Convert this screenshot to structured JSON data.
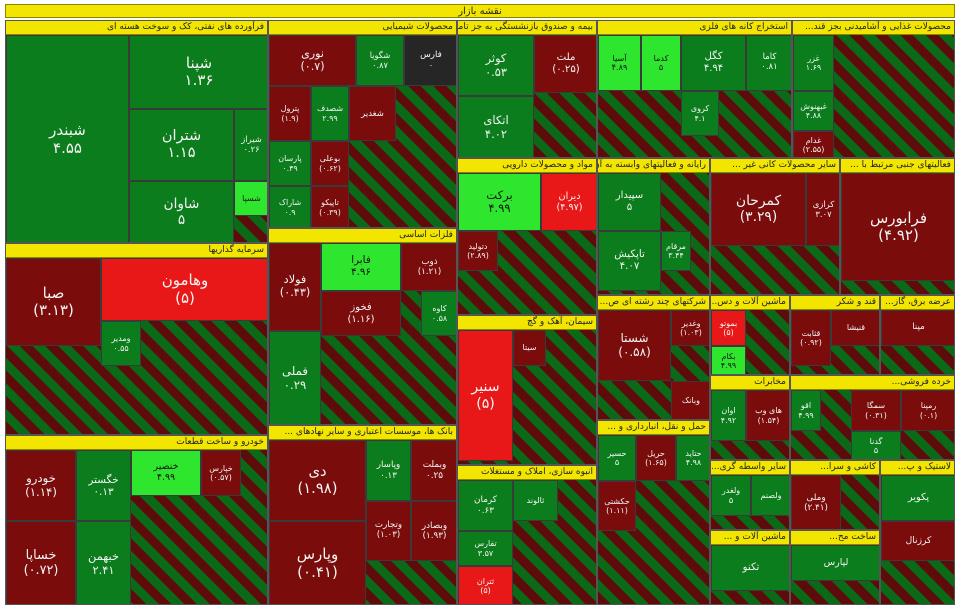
{
  "title": "نقشه بازار",
  "sectors": [
    {
      "name": "فرآورده های نفتی، کک و سوخت هسته ای",
      "tiles": [
        {
          "symbol": "شبندر",
          "change": "۴.۵۵",
          "color": "#0b7d1c"
        },
        {
          "symbol": "شپنا",
          "change": "۱.۳۶",
          "color": "#0b7d1c"
        },
        {
          "symbol": "شتران",
          "change": "۱.۱۵",
          "color": "#0b7d1c"
        },
        {
          "symbol": "شیراز",
          "change": "۰.۲۶",
          "color": "#0b7d1c"
        },
        {
          "symbol": "شاوان",
          "change": "۵",
          "color": "#0b7d1c"
        },
        {
          "symbol": "شسپا",
          "change": "",
          "color": "#2ee62e"
        }
      ]
    },
    {
      "name": "محصولات شیمیایی",
      "tiles": [
        {
          "symbol": "نوری",
          "change": "(۰.۷)",
          "color": "#7a0c0c"
        },
        {
          "symbol": "شگویا",
          "change": "۰.۸۷",
          "color": "#0b7d1c"
        },
        {
          "symbol": "فارس",
          "change": "۰",
          "color": "#262626"
        },
        {
          "symbol": "پترول",
          "change": "(۱.۹)",
          "color": "#7a0c0c"
        },
        {
          "symbol": "شصدف",
          "change": "۲.۹۹",
          "color": "#0b7d1c"
        },
        {
          "symbol": "شغدیر",
          "change": "",
          "color": "#7a0c0c"
        },
        {
          "symbol": "پارسان",
          "change": "۰.۴۹",
          "color": "#0b7d1c"
        },
        {
          "symbol": "بوعلی",
          "change": "(۰.۶۲)",
          "color": "#7a0c0c"
        },
        {
          "symbol": "شاراک",
          "change": "۰.۹",
          "color": "#0b7d1c"
        },
        {
          "symbol": "تاپیکو",
          "change": "(۰.۳۹)",
          "color": "#7a0c0c"
        }
      ]
    },
    {
      "name": "بیمه و صندوق بازنشستگی به جز تامین ...",
      "tiles": [
        {
          "symbol": "کوثر",
          "change": "۰.۵۳",
          "color": "#0b7d1c"
        },
        {
          "symbol": "ملت",
          "change": "(۰.۲۵)",
          "color": "#7a0c0c"
        },
        {
          "symbol": "اتکای",
          "change": "۴.۰۲",
          "color": "#0b7d1c"
        }
      ]
    },
    {
      "name": "استخراج کانه های فلزی",
      "tiles": [
        {
          "symbol": "آسیا",
          "change": "۴.۸۹",
          "color": "#2ee62e"
        },
        {
          "symbol": "کدما",
          "change": "۵",
          "color": "#2ee62e"
        },
        {
          "symbol": "کگل",
          "change": "۴.۹۴",
          "color": "#0b7d1c"
        },
        {
          "symbol": "کاما",
          "change": "۰.۸۱",
          "color": "#0b7d1c"
        },
        {
          "symbol": "کروی",
          "change": "۴.۱",
          "color": "#0b7d1c"
        }
      ]
    },
    {
      "name": "محصولات غذایی و آشامیدنی بجز قند...",
      "tiles": [
        {
          "symbol": "غزر",
          "change": "۱.۶۹",
          "color": "#0b7d1c"
        },
        {
          "symbol": "غبهنوش",
          "change": "۴.۸۸",
          "color": "#0b7d1c"
        },
        {
          "symbol": "غدام",
          "change": "(۲.۵۵)",
          "color": "#7a0c0c"
        }
      ]
    },
    {
      "name": "فعالیتهای جنبی مرتبط با ...",
      "tiles": [
        {
          "symbol": "فرابورس",
          "change": "(۴.۹۲)",
          "color": "#7a0c0c"
        }
      ]
    },
    {
      "name": "مواد و محصولات دارویی",
      "tiles": [
        {
          "symbol": "برکت",
          "change": "۴.۹۹",
          "color": "#2ee62e"
        },
        {
          "symbol": "دیران",
          "change": "(۴.۹۷)",
          "color": "#e81818"
        },
        {
          "symbol": "دتولید",
          "change": "(۲.۸۹)",
          "color": "#7a0c0c"
        }
      ]
    },
    {
      "name": "رایانه و فعالیتهای وابسته به آن",
      "tiles": [
        {
          "symbol": "سپیدار",
          "change": "۵",
          "color": "#0b7d1c"
        },
        {
          "symbol": "تاپکیش",
          "change": "۴.۰۷",
          "color": "#0b7d1c"
        },
        {
          "symbol": "مرقام",
          "change": "۳.۴۴",
          "color": "#0b7d1c"
        }
      ]
    },
    {
      "name": "سایر محصولات کانی غیر ...",
      "tiles": [
        {
          "symbol": "کمرحان",
          "change": "(۳.۲۹)",
          "color": "#7a0c0c"
        },
        {
          "symbol": "کرازی",
          "change": "۳.۰۷",
          "color": "#7a0c0c"
        }
      ]
    },
    {
      "name": "فلزات اساسی",
      "tiles": [
        {
          "symbol": "فولاد",
          "change": "(۰.۴۳)",
          "color": "#7a0c0c"
        },
        {
          "symbol": "فابرا",
          "change": "۴.۹۶",
          "color": "#2ee62e"
        },
        {
          "symbol": "ذوب",
          "change": "(۱.۲۱)",
          "color": "#7a0c0c"
        },
        {
          "symbol": "فخوز",
          "change": "(۱.۱۶)",
          "color": "#7a0c0c"
        },
        {
          "symbol": "فملی",
          "change": "۰.۲۹",
          "color": "#0b7d1c"
        },
        {
          "symbol": "کاوه",
          "change": "۰.۵۸",
          "color": "#0b7d1c"
        }
      ]
    },
    {
      "name": "سرمایه گذاریها",
      "tiles": [
        {
          "symbol": "صبا",
          "change": "(۳.۱۳)",
          "color": "#7a0c0c"
        },
        {
          "symbol": "وهامون",
          "change": "(۵)",
          "color": "#e81818"
        },
        {
          "symbol": "ومدیر",
          "change": "۰.۵۵",
          "color": "#0b7d1c"
        }
      ]
    },
    {
      "name": "خودرو و ساخت قطعات",
      "tiles": [
        {
          "symbol": "خودرو",
          "change": "(۱.۱۴)",
          "color": "#7a0c0c"
        },
        {
          "symbol": "خگستر",
          "change": "۰.۱۳",
          "color": "#0b7d1c"
        },
        {
          "symbol": "خنصیر",
          "change": "۴.۹۹",
          "color": "#2ee62e"
        },
        {
          "symbol": "خپارس",
          "change": "(۰.۵۷)",
          "color": "#7a0c0c"
        },
        {
          "symbol": "خساپا",
          "change": "(۰.۷۲)",
          "color": "#7a0c0c"
        },
        {
          "symbol": "خبهمن",
          "change": "۲.۴۱",
          "color": "#0b7d1c"
        }
      ]
    },
    {
      "name": "بانک ها، موسسات اعتباری و سایر نهادهای ...",
      "tiles": [
        {
          "symbol": "دی",
          "change": "(۱.۹۸)",
          "color": "#7a0c0c"
        },
        {
          "symbol": "وپاسار",
          "change": "۰.۱۳",
          "color": "#0b7d1c"
        },
        {
          "symbol": "وبملت",
          "change": "۰.۲۵",
          "color": "#7a0c0c"
        },
        {
          "symbol": "وتجارت",
          "change": "(۱.۰۳)",
          "color": "#7a0c0c"
        },
        {
          "symbol": "وپارس",
          "change": "(۰.۴۱)",
          "color": "#7a0c0c"
        },
        {
          "symbol": "وبصادر",
          "change": "(۱.۹۳)",
          "color": "#7a0c0c"
        }
      ]
    },
    {
      "name": "سیمان، آهک و گچ",
      "tiles": [
        {
          "symbol": "سنیر",
          "change": "(۵)",
          "color": "#e81818"
        },
        {
          "symbol": "سیتا",
          "change": "",
          "color": "#7a0c0c"
        }
      ]
    },
    {
      "name": "انبوه سازی، املاک و مستغلات",
      "tiles": [
        {
          "symbol": "کرمان",
          "change": "۰.۶۳",
          "color": "#0b7d1c"
        },
        {
          "symbol": "ثالوند",
          "change": "",
          "color": "#0b7d1c"
        },
        {
          "symbol": "تفارس",
          "change": "۳.۵۷",
          "color": "#0b7d1c"
        },
        {
          "symbol": "ثتران",
          "change": "(۵)",
          "color": "#e81818"
        }
      ]
    },
    {
      "name": "شرکتهای چند رشته ای ص...",
      "tiles": [
        {
          "symbol": "شستا",
          "change": "(۰.۵۸)",
          "color": "#7a0c0c"
        },
        {
          "symbol": "وغدیر",
          "change": "(۱.۰۳)",
          "color": "#7a0c0c"
        },
        {
          "symbol": "وبانک",
          "change": "",
          "color": "#7a0c0c"
        }
      ]
    },
    {
      "name": "ماشین آلات و دس...",
      "tiles": [
        {
          "symbol": "بموتو",
          "change": "(۵)",
          "color": "#e81818"
        },
        {
          "symbol": "بکام",
          "change": "۴.۹۹",
          "color": "#2ee62e"
        }
      ]
    },
    {
      "name": "قند و شکر",
      "tiles": [
        {
          "symbol": "قثابت",
          "change": "(۰.۹۲)",
          "color": "#7a0c0c"
        },
        {
          "symbol": "قنیشا",
          "change": "",
          "color": "#7a0c0c"
        }
      ]
    },
    {
      "name": "عرضه برق، گاز...",
      "tiles": [
        {
          "symbol": "مپنا",
          "change": "",
          "color": "#7a0c0c"
        }
      ]
    },
    {
      "name": "مخابرات",
      "tiles": [
        {
          "symbol": "اوان",
          "change": "۴.۹۲",
          "color": "#0b7d1c"
        },
        {
          "symbol": "های وب",
          "change": "(۱.۵۴)",
          "color": "#7a0c0c"
        }
      ]
    },
    {
      "name": "خرده فروشی...",
      "tiles": [
        {
          "symbol": "اقو",
          "change": "۴.۹۹",
          "color": "#0b7d1c"
        },
        {
          "symbol": "سمگا",
          "change": "(۰.۳۱)",
          "color": "#7a0c0c"
        },
        {
          "symbol": "رمپنا",
          "change": "(۰.۱)",
          "color": "#7a0c0c"
        },
        {
          "symbol": "گدنا",
          "change": "۵",
          "color": "#0b7d1c"
        }
      ]
    },
    {
      "name": "حمل و نقل، انبارداری و ...",
      "tiles": [
        {
          "symbol": "حسیر",
          "change": "۵",
          "color": "#0b7d1c"
        },
        {
          "symbol": "حریل",
          "change": "(۱.۶۵)",
          "color": "#7a0c0c"
        },
        {
          "symbol": "حکشتی",
          "change": "(۱.۱۱)",
          "color": "#7a0c0c"
        },
        {
          "symbol": "حتاید",
          "change": "۴.۹۸",
          "color": "#0b7d1c"
        }
      ]
    },
    {
      "name": "سایر واسطه گری...",
      "tiles": [
        {
          "symbol": "ولغدر",
          "change": "۵",
          "color": "#0b7d1c"
        },
        {
          "symbol": "ولصنم",
          "change": "",
          "color": "#0b7d1c"
        }
      ]
    },
    {
      "name": "کاشی و سرا...",
      "tiles": [
        {
          "symbol": "وملی",
          "change": "(۲.۴۱)",
          "color": "#7a0c0c"
        }
      ]
    },
    {
      "name": "لاستیک و پ...",
      "tiles": [
        {
          "symbol": "پکویر",
          "change": "",
          "color": "#0b7d1c"
        },
        {
          "symbol": "کرزنال",
          "change": "",
          "color": "#7a0c0c"
        }
      ]
    },
    {
      "name": "ساخت مح...",
      "tiles": [
        {
          "symbol": "لپارس",
          "change": "",
          "color": "#0b7d1c"
        }
      ]
    },
    {
      "name": "ماشین آلات و ...",
      "tiles": [
        {
          "symbol": "تکنو",
          "change": "",
          "color": "#0b7d1c"
        }
      ]
    }
  ]
}
